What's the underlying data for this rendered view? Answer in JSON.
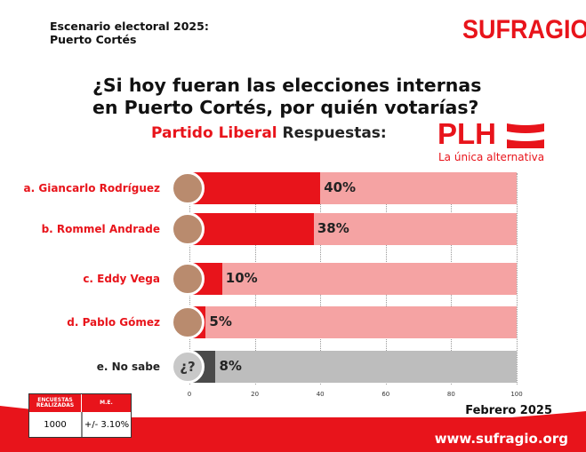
{
  "header": {
    "line1": "Escenario electoral 2025:",
    "line2": "Puerto Cortés",
    "logo": "SUFRAGIO"
  },
  "question": {
    "line1": "¿Si hoy fueran las elecciones internas",
    "line2": "en Puerto Cortés, por quién votarías?"
  },
  "subtitle": {
    "party": "Partido Liberal",
    "rest": " Respuestas:"
  },
  "party_logo": {
    "text": "PLH",
    "tagline": "La única alternativa"
  },
  "colors": {
    "red": "#e8141b",
    "light_red": "#f5a3a3",
    "grey": "#bdbdbd",
    "dark_grey": "#4a4a4a"
  },
  "chart_data": {
    "type": "bar",
    "orientation": "horizontal",
    "categories": [
      "a. Giancarlo Rodríguez",
      "b. Rommel Andrade",
      "c. Eddy Vega",
      "d. Pablo Gómez",
      "e. No sabe"
    ],
    "values": [
      40,
      38,
      10,
      5,
      8
    ],
    "labels": [
      "40%",
      "38%",
      "10%",
      "5%",
      "8%"
    ],
    "xlim": [
      0,
      100
    ],
    "xticks": [
      "0",
      "20",
      "40",
      "60",
      "80",
      "100"
    ]
  },
  "table": {
    "h1": "ENCUESTAS REALIZADAS",
    "h2": "M.E.",
    "v1": "1000",
    "v2": "+/- 3.10%"
  },
  "date": "Febrero 2025",
  "url": "www.sufragio.org"
}
